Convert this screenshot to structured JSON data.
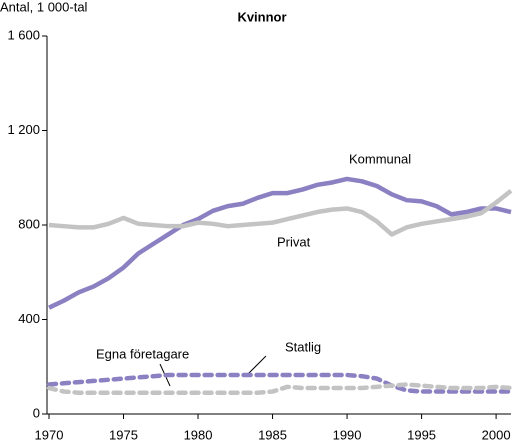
{
  "chart_data": {
    "type": "line",
    "title": "Kvinnor",
    "y_label": "Antal, 1 000-tal",
    "x": [
      1970,
      1971,
      1972,
      1973,
      1974,
      1975,
      1976,
      1977,
      1978,
      1979,
      1980,
      1981,
      1982,
      1983,
      1984,
      1985,
      1986,
      1987,
      1988,
      1989,
      1990,
      1991,
      1992,
      1993,
      1994,
      1995,
      1996,
      1997,
      1998,
      1999,
      2000,
      2001
    ],
    "xlim": [
      1970,
      2001
    ],
    "xticks": [
      1970,
      1975,
      1980,
      1985,
      1990,
      1995,
      2000
    ],
    "ylim": [
      0,
      1600
    ],
    "yticks": [
      0,
      400,
      800,
      {
        "value": 1200,
        "label": "1 200"
      },
      {
        "value": 1600,
        "label": "1 600"
      }
    ],
    "series": [
      {
        "name": "Kommunal",
        "color": "#8b80c2",
        "dashed": false,
        "values": [
          450,
          480,
          515,
          540,
          575,
          620,
          680,
          720,
          760,
          800,
          825,
          860,
          880,
          890,
          915,
          935,
          935,
          950,
          970,
          980,
          995,
          985,
          965,
          930,
          905,
          900,
          880,
          845,
          855,
          870,
          870,
          855
        ]
      },
      {
        "name": "Privat",
        "color": "#c3c3c3",
        "dashed": false,
        "values": [
          800,
          795,
          790,
          790,
          805,
          830,
          805,
          800,
          795,
          795,
          810,
          805,
          795,
          800,
          805,
          810,
          825,
          840,
          855,
          865,
          870,
          855,
          815,
          760,
          790,
          805,
          815,
          825,
          835,
          850,
          895,
          945
        ]
      },
      {
        "name": "Statlig",
        "color": "#8b80c2",
        "dashed": true,
        "values": [
          125,
          130,
          135,
          140,
          145,
          150,
          155,
          160,
          165,
          165,
          165,
          165,
          165,
          165,
          165,
          165,
          165,
          165,
          165,
          165,
          165,
          160,
          150,
          120,
          100,
          95,
          95,
          95,
          95,
          95,
          95,
          95
        ]
      },
      {
        "name": "Egna företagare",
        "color": "#c3c3c3",
        "dashed": true,
        "values": [
          110,
          95,
          90,
          90,
          90,
          90,
          90,
          90,
          90,
          90,
          90,
          90,
          90,
          90,
          90,
          95,
          115,
          110,
          110,
          110,
          110,
          110,
          115,
          120,
          125,
          120,
          115,
          110,
          110,
          110,
          115,
          110
        ]
      }
    ]
  }
}
